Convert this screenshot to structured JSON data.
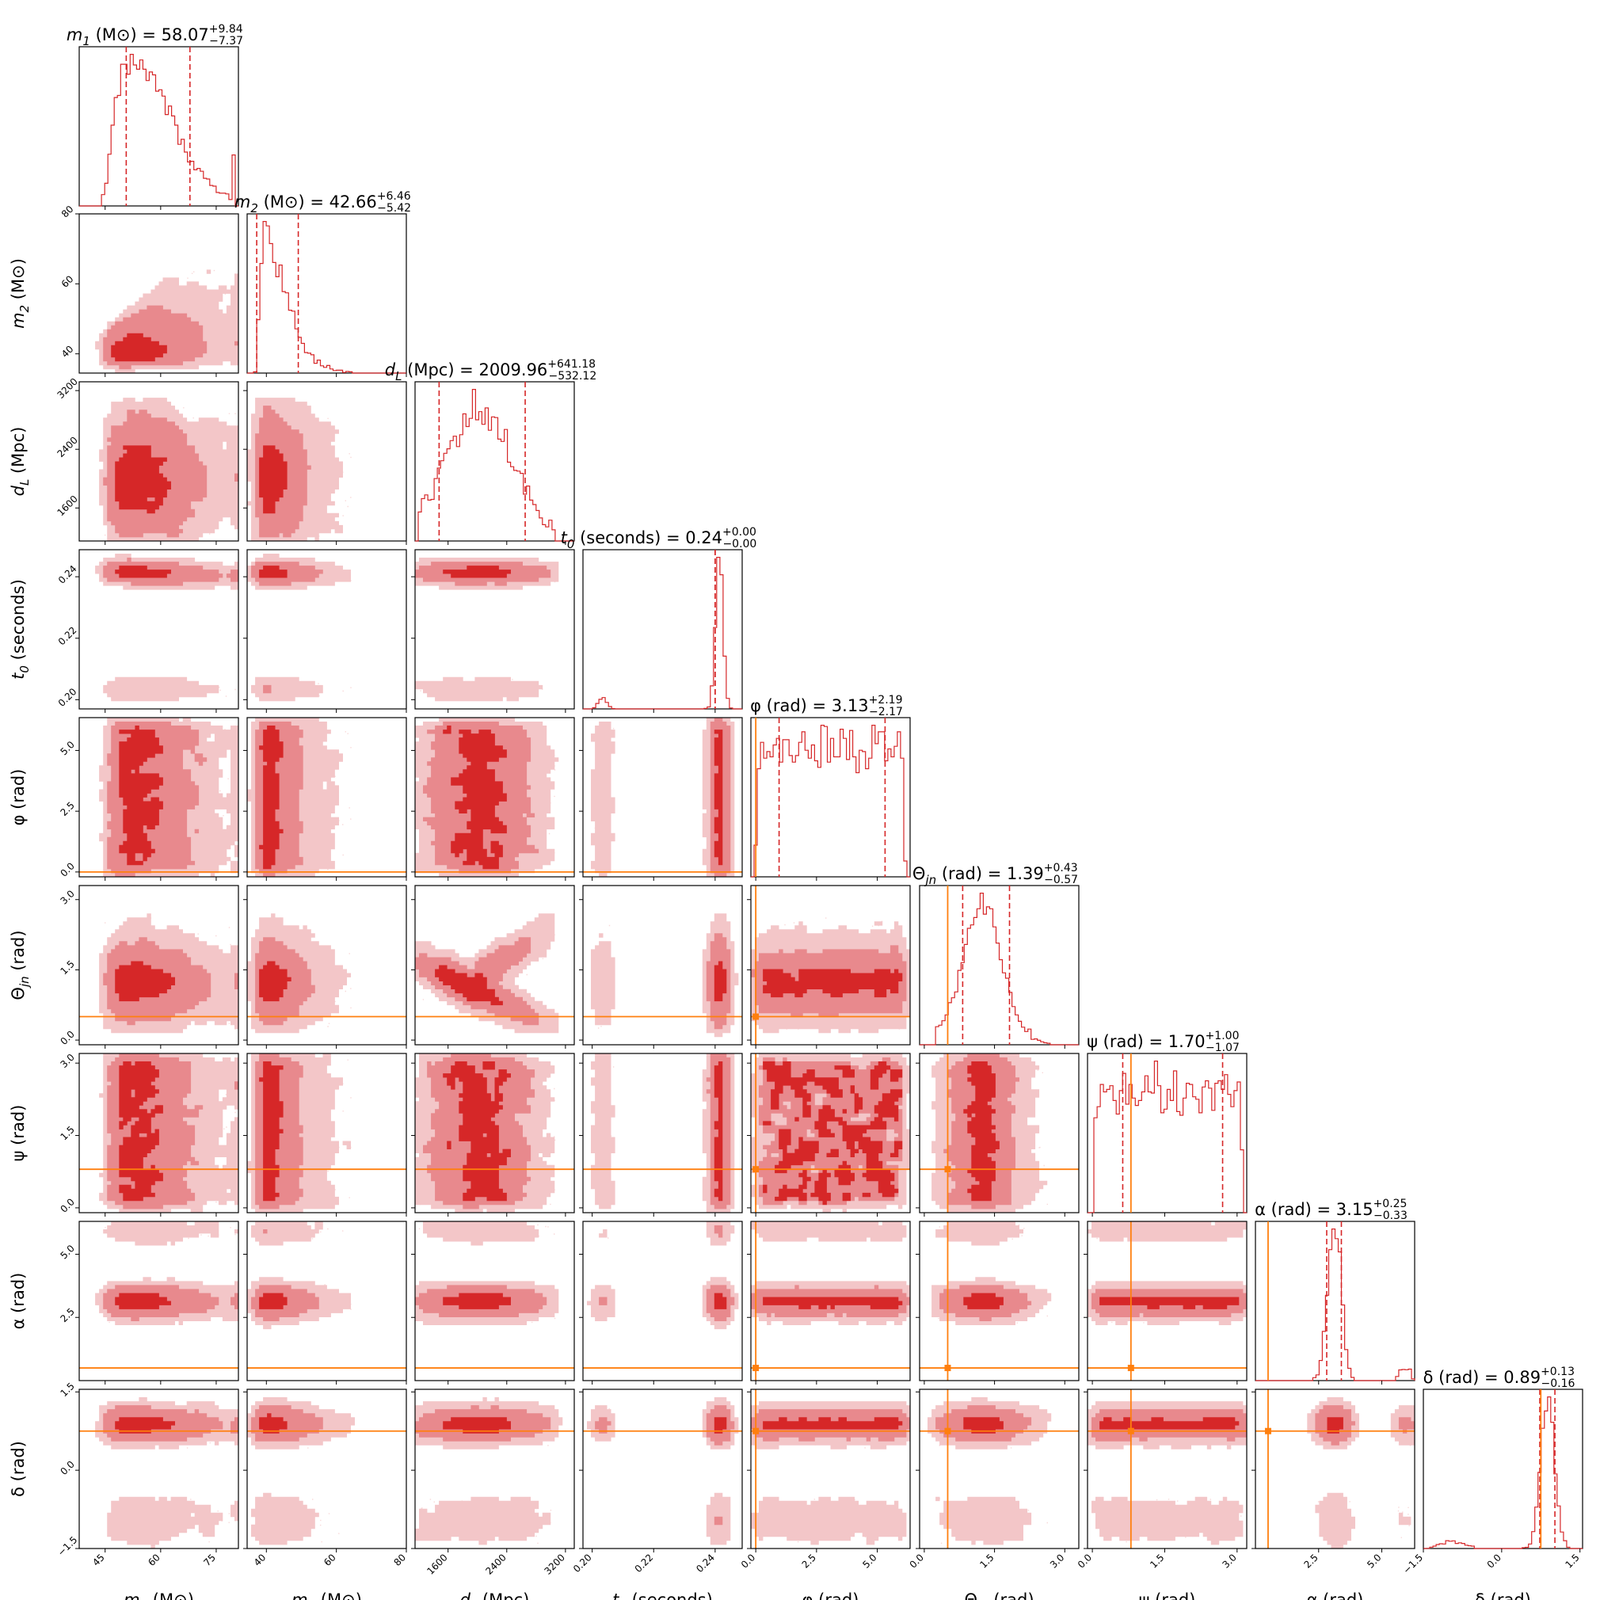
{
  "chart_data": {
    "type": "scatter",
    "subtype": "corner",
    "colors": {
      "posterior": "#d62728",
      "truth": "#ff7f0e"
    },
    "parameters": [
      {
        "id": "m1",
        "label": "m1 (M⊙)",
        "title": "m1 (M⊙) = 58.07 +9.84 −7.37",
        "lim": [
          38,
          81
        ],
        "ticks": [
          45,
          60,
          75
        ],
        "tick_labels": [
          "45",
          "60",
          "75"
        ],
        "median": 58.07,
        "err_plus": 9.84,
        "err_minus": 7.37,
        "truth": null
      },
      {
        "id": "m2",
        "label": "m2 (M⊙)",
        "title": "m2 (M⊙) = 42.66 +6.46 −5.42",
        "lim": [
          34.5,
          80
        ],
        "ticks": [
          40,
          60,
          80
        ],
        "tick_labels": [
          "40",
          "60",
          "80"
        ],
        "median": 42.66,
        "err_plus": 6.46,
        "err_minus": 5.42,
        "truth": null
      },
      {
        "id": "dL",
        "label": "dL (Mpc)",
        "title": "dL (Mpc) = 2009.96 +641.18 −532.12",
        "lim": [
          1150,
          3320
        ],
        "ticks": [
          1600,
          2400,
          3200
        ],
        "tick_labels": [
          "1600",
          "2400",
          "3200"
        ],
        "median": 2009.96,
        "err_plus": 641.18,
        "err_minus": 532.12,
        "truth": null
      },
      {
        "id": "t0",
        "label": "t0 (seconds)",
        "title": "t0 (seconds) = 0.24 +0.00 −0.00",
        "lim": [
          0.197,
          0.2488
        ],
        "ticks": [
          0.2,
          0.22,
          0.24
        ],
        "tick_labels": [
          "0.20",
          "0.22",
          "0.24"
        ],
        "median": 0.24,
        "err_plus": 0.0,
        "err_minus": 0.0,
        "truth": null
      },
      {
        "id": "phi",
        "label": "φ (rad)",
        "title": "φ (rad) = 3.13 +2.19 −2.17",
        "lim": [
          -0.2,
          6.35
        ],
        "ticks": [
          0,
          2.5,
          5
        ],
        "tick_labels": [
          "0.0",
          "2.5",
          "5.0"
        ],
        "median": 3.13,
        "err_plus": 2.19,
        "err_minus": 2.17,
        "truth": 0.0
      },
      {
        "id": "theta",
        "label": "Θjn (rad)",
        "title": "Θjn (rad) = 1.39 +0.43 −0.57",
        "lim": [
          -0.1,
          3.3
        ],
        "ticks": [
          0,
          1.5,
          3
        ],
        "tick_labels": [
          "0.0",
          "1.5",
          "3.0"
        ],
        "median": 1.39,
        "err_plus": 0.43,
        "err_minus": 0.57,
        "truth": 0.5
      },
      {
        "id": "psi",
        "label": "ψ (rad)",
        "title": "ψ (rad) = 1.70 +1.00 −1.07",
        "lim": [
          -0.1,
          3.2
        ],
        "ticks": [
          0,
          1.5,
          3
        ],
        "tick_labels": [
          "0.0",
          "1.5",
          "3.0"
        ],
        "median": 1.7,
        "err_plus": 1.0,
        "err_minus": 1.07,
        "truth": 0.8
      },
      {
        "id": "alpha",
        "label": "α (rad)",
        "title": "α (rad) = 3.15 +0.25 −0.33",
        "lim": [
          0,
          6.3
        ],
        "ticks": [
          2.5,
          5
        ],
        "tick_labels": [
          "2.5",
          "5.0"
        ],
        "median": 3.15,
        "err_plus": 0.25,
        "err_minus": 0.33,
        "truth": 0.5
      },
      {
        "id": "delta",
        "label": "δ (rad)",
        "title": "δ (rad) = 0.89 +0.13 −0.16",
        "lim": [
          -1.5,
          1.55
        ],
        "ticks": [
          -1.5,
          0,
          1.5
        ],
        "tick_labels": [
          "−1.5",
          "0.0",
          "1.5"
        ],
        "median": 0.89,
        "err_plus": 0.13,
        "err_minus": 0.16,
        "truth": 0.75
      }
    ]
  }
}
